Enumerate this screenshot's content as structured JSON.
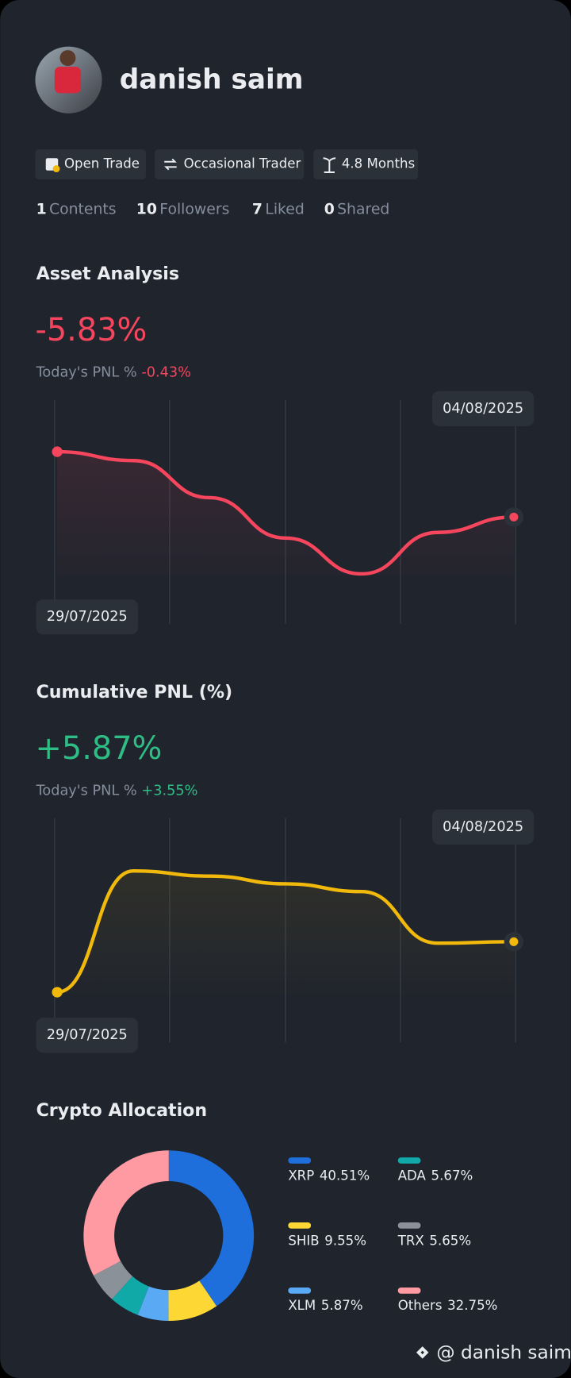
{
  "profile": {
    "name": "danish saim",
    "tags": [
      "Open Trade",
      "Occasional Trader",
      "4.8 Months"
    ],
    "stats": [
      {
        "value": 1,
        "label": "Contents"
      },
      {
        "value": 10,
        "label": "Followers"
      },
      {
        "value": 7,
        "label": "Liked"
      },
      {
        "value": 0,
        "label": "Shared"
      }
    ]
  },
  "asset_analysis": {
    "title": "Asset Analysis",
    "value": "-5.83%",
    "today_label": "Today's PNL %",
    "today": "-0.43%",
    "chart": {
      "type": "line",
      "start_date": "29/07/2025",
      "end_date": "04/08/2025",
      "color": "#f6465d",
      "values": [
        0,
        -0.79,
        -4.1,
        -7.7,
        -10.9,
        -7.2,
        -5.83
      ]
    }
  },
  "cumulative_pnl": {
    "title": "Cumulative PNL (%)",
    "value": "+5.87%",
    "today_label": "Today's PNL %",
    "today": "+3.55%",
    "chart": {
      "type": "line",
      "start_date": "29/07/2025",
      "end_date": "04/08/2025",
      "color": "#f0b90b",
      "values": [
        0,
        14.1,
        13.5,
        12.6,
        11.7,
        5.7,
        5.87
      ]
    }
  },
  "crypto_allocation": {
    "title": "Crypto Allocation",
    "chart": {
      "type": "donut",
      "categories": [
        "XRP",
        "SHIB",
        "XLM",
        "ADA",
        "TRX",
        "Others"
      ],
      "values": [
        40.51,
        9.55,
        5.87,
        5.67,
        5.65,
        32.75
      ],
      "value_labels": [
        "40.51%",
        "9.55%",
        "5.87%",
        "5.67%",
        "5.65%",
        "32.75%"
      ],
      "colors": [
        "#1e6fdb",
        "#fdd835",
        "#5aa9f5",
        "#11a8a8",
        "#8a9199",
        "#ff9aa2"
      ]
    }
  },
  "footer": "@ danish saim"
}
